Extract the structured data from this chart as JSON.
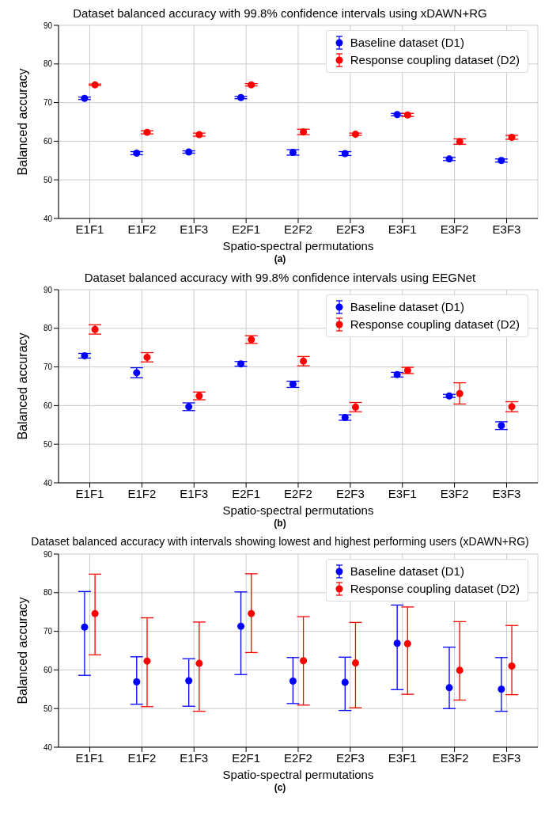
{
  "chart_data": [
    {
      "type": "scatter",
      "title": "Dataset balanced accuracy with 99.8% confidence intervals using xDAWN+RG",
      "xlabel": "Spatio-spectral permutations",
      "ylabel": "Balanced accuracy",
      "annotations": [
        "(a)"
      ],
      "categories": [
        "E1F1",
        "E1F2",
        "E1F3",
        "E2F1",
        "E2F2",
        "E2F3",
        "E3F1",
        "E3F2",
        "E3F3"
      ],
      "ylim": [
        40,
        90
      ],
      "yticks": [
        40,
        50,
        60,
        70,
        80,
        90
      ],
      "grid": true,
      "legend": "top right",
      "marker": "circle",
      "series": [
        {
          "name": "Baseline dataset (D1)",
          "color": "#0000ff",
          "values": [
            71.1,
            56.9,
            57.2,
            71.3,
            57.1,
            56.8,
            66.9,
            55.4,
            55.0
          ],
          "errors": [
            0.3,
            0.4,
            0.3,
            0.3,
            0.7,
            0.5,
            0.3,
            0.4,
            0.4
          ]
        },
        {
          "name": "Response coupling dataset (D2)",
          "color": "#ff0000",
          "values": [
            74.6,
            62.3,
            61.7,
            74.6,
            62.4,
            61.8,
            66.8,
            59.9,
            61.0
          ],
          "errors": [
            0.2,
            0.4,
            0.4,
            0.3,
            0.7,
            0.3,
            0.4,
            0.7,
            0.5
          ]
        }
      ]
    },
    {
      "type": "scatter",
      "title": "Dataset balanced accuracy with 99.8% confidence intervals using EEGNet",
      "xlabel": "Spatio-spectral permutations",
      "ylabel": "Balanced accuracy",
      "annotations": [
        "(b)"
      ],
      "categories": [
        "E1F1",
        "E1F2",
        "E1F3",
        "E2F1",
        "E2F2",
        "E2F3",
        "E3F1",
        "E3F2",
        "E3F3"
      ],
      "ylim": [
        40,
        90
      ],
      "yticks": [
        40,
        50,
        60,
        70,
        80,
        90
      ],
      "grid": true,
      "legend": "top right",
      "marker": "circle",
      "series": [
        {
          "name": "Baseline dataset (D1)",
          "color": "#0000ff",
          "values": [
            72.9,
            68.5,
            59.7,
            70.8,
            65.5,
            56.9,
            68.0,
            62.5,
            54.8
          ],
          "errors": [
            0.6,
            1.3,
            1.0,
            0.6,
            0.8,
            0.7,
            0.6,
            0.4,
            1.0
          ]
        },
        {
          "name": "Response coupling dataset (D2)",
          "color": "#ff0000",
          "values": [
            79.7,
            72.5,
            62.5,
            77.1,
            71.5,
            59.6,
            69.1,
            63.1,
            59.7
          ],
          "errors": [
            1.2,
            1.2,
            1.0,
            1.0,
            1.2,
            1.2,
            0.8,
            [
              60.4,
              65.9
            ],
            1.3
          ]
        }
      ]
    },
    {
      "type": "scatter",
      "title": "Dataset balanced accuracy with intervals showing lowest and highest performing users (xDAWN+RG)",
      "xlabel": "Spatio-spectral permutations",
      "ylabel": "Balanced accuracy",
      "annotations": [
        "(c)"
      ],
      "categories": [
        "E1F1",
        "E1F2",
        "E1F3",
        "E2F1",
        "E2F2",
        "E2F3",
        "E3F1",
        "E3F2",
        "E3F3"
      ],
      "ylim": [
        40,
        90
      ],
      "yticks": [
        40,
        50,
        60,
        70,
        80,
        90
      ],
      "grid": true,
      "legend": "top right",
      "marker": "circle",
      "series": [
        {
          "name": "Baseline dataset (D1)",
          "color": "#0000ff",
          "values": [
            71.1,
            56.9,
            57.2,
            71.3,
            57.1,
            56.8,
            66.9,
            55.4,
            55.0
          ],
          "errors": [
            [
              58.6,
              80.3
            ],
            [
              51.1,
              63.4
            ],
            [
              50.6,
              62.9
            ],
            [
              58.8,
              80.2
            ],
            [
              51.3,
              63.2
            ],
            [
              49.5,
              63.3
            ],
            [
              54.9,
              76.8
            ],
            [
              50.0,
              65.9
            ],
            [
              49.3,
              63.2
            ]
          ]
        },
        {
          "name": "Response coupling dataset (D2)",
          "color": "#ff0000",
          "values": [
            74.6,
            62.3,
            61.7,
            74.6,
            62.4,
            61.8,
            66.8,
            59.9,
            61.0
          ],
          "errors": [
            [
              63.9,
              84.8
            ],
            [
              50.5,
              73.5
            ],
            [
              49.3,
              72.4
            ],
            [
              64.5,
              84.9
            ],
            [
              50.9,
              73.8
            ],
            [
              50.2,
              72.3
            ],
            [
              53.7,
              76.3
            ],
            [
              52.2,
              72.5
            ],
            [
              53.6,
              71.5
            ]
          ]
        }
      ]
    }
  ]
}
